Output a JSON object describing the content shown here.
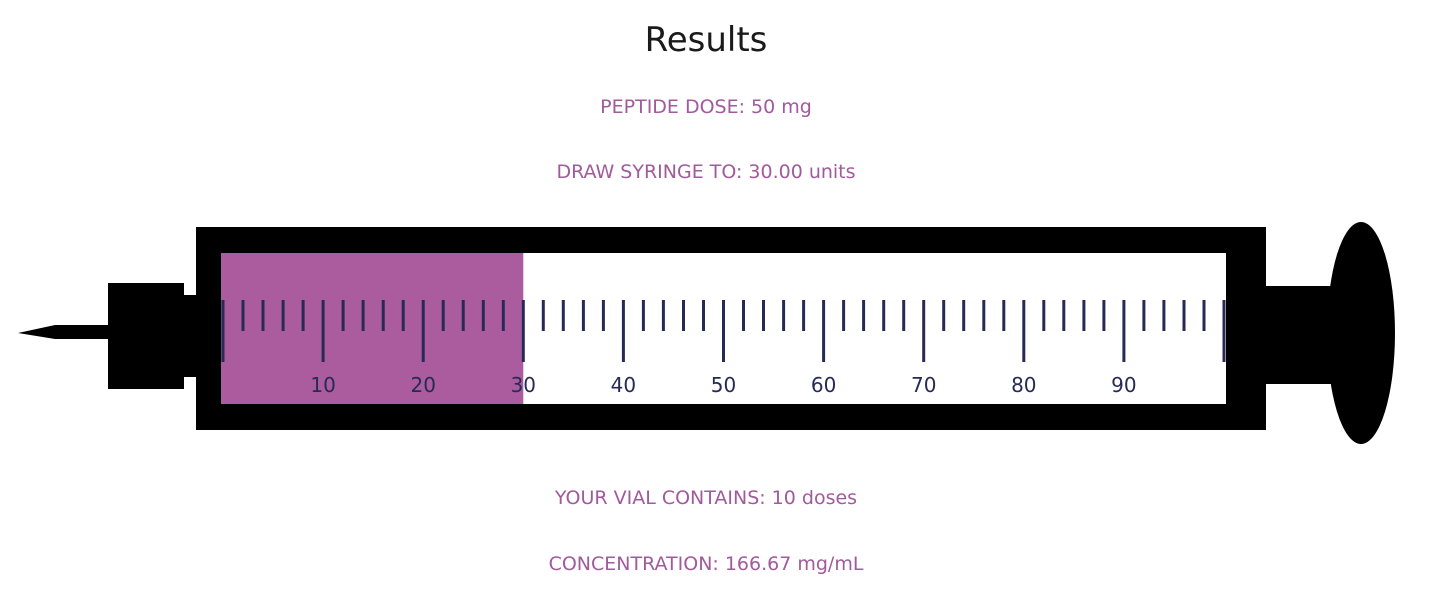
{
  "title": "Results",
  "peptide_dose": {
    "label": "PEPTIDE DOSE:",
    "value": "50 mg"
  },
  "draw_syringe": {
    "label": "DRAW SYRINGE TO:",
    "value": "30.00 units"
  },
  "vial_contains": {
    "label": "YOUR VIAL CONTAINS:",
    "value": "10 doses"
  },
  "concentration": {
    "label": "CONCENTRATION:",
    "value": "166.67 mg/mL"
  },
  "syringe": {
    "fill_units": 30,
    "max_units": 100,
    "scale_labels": [
      "10",
      "20",
      "30",
      "40",
      "50",
      "60",
      "70",
      "80",
      "90"
    ],
    "colors": {
      "fill": "#ab5c9f",
      "body": "#000000",
      "ticks": "#272a55"
    }
  }
}
